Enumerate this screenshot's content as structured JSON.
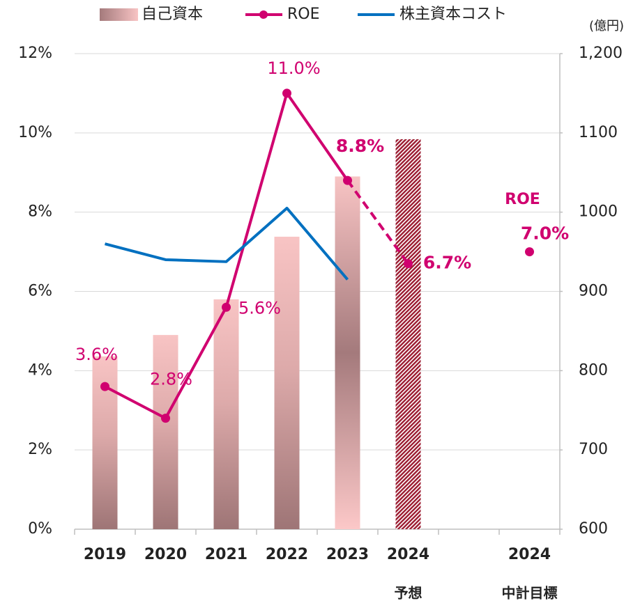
{
  "chart_data": {
    "type": "bar_line",
    "y2_unit": "(億円)",
    "categories": [
      "2019",
      "2020",
      "2021",
      "2022",
      "2023",
      "2024",
      null,
      "2024"
    ],
    "category_notes": [
      null,
      null,
      null,
      null,
      null,
      "予想",
      null,
      "中計目標"
    ],
    "forecast_index": 5,
    "series": [
      {
        "name": "自己資本",
        "type": "bar",
        "axis": "y2",
        "color": "#a47a7c",
        "values": [
          818,
          845,
          890,
          969,
          1045,
          1092,
          null,
          null
        ]
      },
      {
        "name": "ROE",
        "type": "line",
        "axis": "y",
        "color": "#d0006f",
        "values": [
          3.6,
          2.8,
          5.6,
          11.0,
          8.8,
          6.7,
          null,
          7.0
        ],
        "value_labels": [
          "3.6%",
          "2.8%",
          "5.6%",
          "11.0%",
          "8.8%",
          "6.7%",
          null,
          "7.0%"
        ]
      },
      {
        "name": "株主資本コスト",
        "type": "line",
        "axis": "y",
        "color": "#0070c0",
        "values": [
          7.2,
          6.8,
          6.75,
          8.1,
          6.3,
          null,
          null,
          null
        ]
      }
    ],
    "annotations": [
      {
        "text": "ROE",
        "index": 7
      }
    ],
    "ylim": [
      0,
      12
    ],
    "yticks": [
      {
        "value": 0,
        "label": "0%"
      },
      {
        "value": 2,
        "label": "2%"
      },
      {
        "value": 4,
        "label": "4%"
      },
      {
        "value": 6,
        "label": "6%"
      },
      {
        "value": 8,
        "label": "8%"
      },
      {
        "value": 10,
        "label": "10%"
      },
      {
        "value": 12,
        "label": "12%"
      }
    ],
    "y2lim": [
      600,
      1200
    ],
    "y2ticks": [
      600,
      700,
      800,
      900,
      1000,
      1100,
      {
        "value": 1200,
        "label": "1,200"
      }
    ],
    "grid": true
  }
}
